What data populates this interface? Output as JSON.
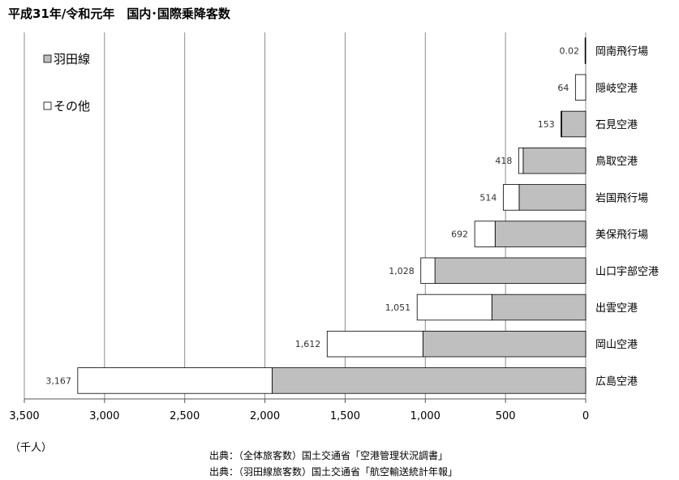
{
  "chart_data": {
    "type": "bar",
    "orientation": "horizontal-reversed",
    "title": "平成31年/令和元年　国内･国際乗降客数",
    "unit_label": "（千人）",
    "categories": [
      "岡南飛行場",
      "隠岐空港",
      "石見空港",
      "鳥取空港",
      "岩国飛行場",
      "美保飛行場",
      "山口宇部空港",
      "出雲空港",
      "岡山空港",
      "広島空港"
    ],
    "series": [
      {
        "name": "羽田線",
        "color": "#bfbfbf",
        "values": [
          0,
          0,
          150,
          390,
          415,
          565,
          940,
          585,
          1015,
          1955
        ]
      },
      {
        "name": "その他",
        "color": "#ffffff",
        "values": [
          0.02,
          64,
          3,
          28,
          99,
          127,
          88,
          466,
          597,
          1212
        ]
      }
    ],
    "totals": [
      "0.02",
      "64",
      "153",
      "418",
      "514",
      "692",
      "1,028",
      "1,051",
      "1,612",
      "3,167"
    ],
    "xlim": [
      0,
      3500
    ],
    "xticks": [
      0,
      500,
      1000,
      1500,
      2000,
      2500,
      3000,
      3500
    ],
    "xtick_labels": [
      "0",
      "500",
      "1,000",
      "1,500",
      "2,000",
      "2,500",
      "3,000",
      "3,500"
    ],
    "grid": true,
    "legend_position": "top-left"
  },
  "source_lines": [
    "出典：（全体旅客数）国土交通省「空港管理状況調書」",
    "出典：（羽田線旅客数）国土交通省「航空輸送統計年報」"
  ]
}
